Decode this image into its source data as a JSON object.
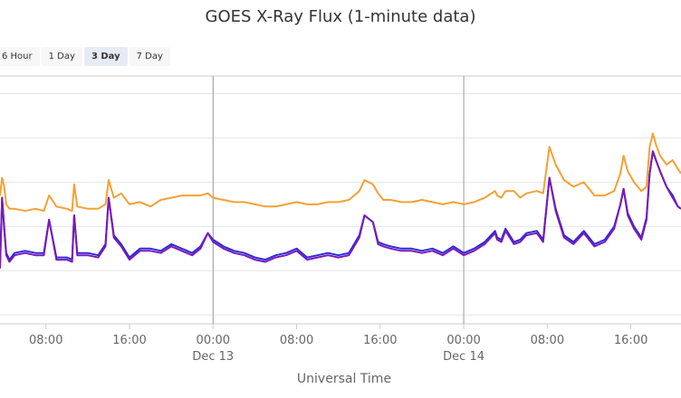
{
  "chart_data": {
    "type": "line",
    "title": "GOES X-Ray Flux (1-minute data)",
    "xlabel": "Universal Time",
    "ylabel": "",
    "range_selector": {
      "options": [
        "6 Hour",
        "1 Day",
        "3 Day",
        "7 Day"
      ],
      "selected": "3 Day"
    },
    "x_ticks": [
      {
        "hours": 8,
        "time": "08:00",
        "date": ""
      },
      {
        "hours": 16,
        "time": "16:00",
        "date": ""
      },
      {
        "hours": 24,
        "time": "00:00",
        "date": "Dec 13"
      },
      {
        "hours": 32,
        "time": "08:00",
        "date": ""
      },
      {
        "hours": 40,
        "time": "16:00",
        "date": ""
      },
      {
        "hours": 48,
        "time": "00:00",
        "date": "Dec 14"
      },
      {
        "hours": 56,
        "time": "08:00",
        "date": ""
      },
      {
        "hours": 64,
        "time": "16:00",
        "date": ""
      }
    ],
    "xlim_hours": [
      3.6,
      68.8
    ],
    "ylim_log10": [
      -9.2,
      -3.6
    ],
    "grid": true,
    "series": [
      {
        "color": "#f7a035",
        "x_hours": [
          3.6,
          3.8,
          4.0,
          4.2,
          4.5,
          5,
          6,
          7,
          7.8,
          8.3,
          9,
          10,
          10.5,
          10.7,
          11,
          12,
          13,
          13.7,
          14.0,
          14.5,
          15.2,
          16,
          17,
          18,
          19,
          20,
          21,
          22,
          22.8,
          23.5,
          24,
          25,
          26,
          27,
          28,
          29,
          30,
          31,
          32,
          33,
          34,
          35,
          36,
          37,
          38,
          38.5,
          39.3,
          39.8,
          40.3,
          41,
          42,
          43,
          44,
          45,
          46,
          47,
          48,
          49,
          50,
          51,
          51.2,
          51.6,
          52,
          52.8,
          53.4,
          54,
          55,
          55.6,
          56.2,
          56.8,
          57.6,
          58.5,
          59.5,
          60.5,
          61.5,
          62.4,
          63.0,
          63.3,
          63.7,
          64.3,
          65,
          65.5,
          65.8,
          66.1,
          66.4,
          66.8,
          67.4,
          68.0,
          68.5,
          68.8
        ],
        "y": [
          -6.3,
          -5.9,
          -6.1,
          -6.5,
          -6.6,
          -6.6,
          -6.65,
          -6.6,
          -6.65,
          -6.3,
          -6.55,
          -6.6,
          -6.65,
          -6.05,
          -6.55,
          -6.6,
          -6.6,
          -6.5,
          -5.95,
          -6.35,
          -6.25,
          -6.5,
          -6.45,
          -6.55,
          -6.4,
          -6.35,
          -6.3,
          -6.3,
          -6.3,
          -6.25,
          -6.35,
          -6.4,
          -6.45,
          -6.45,
          -6.5,
          -6.55,
          -6.55,
          -6.5,
          -6.45,
          -6.5,
          -6.5,
          -6.45,
          -6.45,
          -6.4,
          -6.2,
          -5.95,
          -6.05,
          -6.25,
          -6.4,
          -6.4,
          -6.45,
          -6.45,
          -6.4,
          -6.45,
          -6.5,
          -6.45,
          -6.5,
          -6.45,
          -6.35,
          -6.2,
          -6.3,
          -6.35,
          -6.2,
          -6.2,
          -6.35,
          -6.25,
          -6.2,
          -6.25,
          -5.2,
          -5.6,
          -5.95,
          -6.1,
          -6.0,
          -6.3,
          -6.3,
          -6.2,
          -5.8,
          -5.4,
          -5.75,
          -6.0,
          -6.2,
          -6.1,
          -5.2,
          -4.9,
          -5.15,
          -5.4,
          -5.6,
          -5.5,
          -5.7,
          -5.8
        ]
      },
      {
        "color": "#2b2bd8",
        "x_hours": [
          3.6,
          3.8,
          4.0,
          4.2,
          4.5,
          5,
          6,
          7,
          7.8,
          8.3,
          9,
          10,
          10.5,
          10.7,
          11,
          12,
          13,
          13.7,
          14.0,
          14.5,
          15.2,
          16,
          17,
          18,
          19,
          20,
          21,
          22,
          22.8,
          23.5,
          24,
          25,
          26,
          27,
          28,
          29,
          30,
          31,
          32,
          33,
          34,
          35,
          36,
          37,
          38,
          38.5,
          39.3,
          39.8,
          40.3,
          41,
          42,
          43,
          44,
          45,
          46,
          47,
          48,
          49,
          50,
          51,
          51.2,
          51.6,
          52,
          52.8,
          53.4,
          54,
          55,
          55.6,
          56.2,
          56.8,
          57.6,
          58.5,
          59.5,
          60.5,
          61.5,
          62.4,
          63.0,
          63.3,
          63.7,
          64.3,
          65,
          65.5,
          65.8,
          66.1,
          66.4,
          66.8,
          67.4,
          68.0,
          68.5,
          68.8
        ],
        "y": [
          -7.9,
          -6.35,
          -7.0,
          -7.6,
          -7.75,
          -7.6,
          -7.55,
          -7.6,
          -7.6,
          -6.85,
          -7.7,
          -7.7,
          -7.75,
          -6.75,
          -7.6,
          -7.6,
          -7.65,
          -7.4,
          -6.35,
          -7.2,
          -7.4,
          -7.7,
          -7.5,
          -7.5,
          -7.55,
          -7.4,
          -7.5,
          -7.6,
          -7.45,
          -7.15,
          -7.3,
          -7.45,
          -7.55,
          -7.6,
          -7.7,
          -7.75,
          -7.65,
          -7.6,
          -7.5,
          -7.7,
          -7.65,
          -7.6,
          -7.65,
          -7.6,
          -7.2,
          -6.75,
          -6.9,
          -7.35,
          -7.4,
          -7.45,
          -7.5,
          -7.5,
          -7.55,
          -7.5,
          -7.6,
          -7.45,
          -7.6,
          -7.5,
          -7.35,
          -7.1,
          -7.25,
          -7.3,
          -7.05,
          -7.35,
          -7.3,
          -7.15,
          -7.1,
          -7.3,
          -5.9,
          -6.6,
          -7.2,
          -7.35,
          -7.1,
          -7.4,
          -7.3,
          -7.0,
          -6.5,
          -6.15,
          -6.7,
          -7.0,
          -7.25,
          -6.8,
          -5.8,
          -5.3,
          -5.5,
          -5.75,
          -6.1,
          -6.3,
          -6.55,
          -6.6
        ]
      },
      {
        "color": "#7a19b8",
        "x_hours": [
          3.6,
          3.8,
          4.0,
          4.2,
          4.5,
          5,
          6,
          7,
          7.8,
          8.3,
          9,
          10,
          10.5,
          10.7,
          11,
          12,
          13,
          13.7,
          14.0,
          14.5,
          15.2,
          16,
          17,
          18,
          19,
          20,
          21,
          22,
          22.8,
          23.5,
          24,
          25,
          26,
          27,
          28,
          29,
          30,
          31,
          32,
          33,
          34,
          35,
          36,
          37,
          38,
          38.5,
          39.3,
          39.8,
          40.3,
          41,
          42,
          43,
          44,
          45,
          46,
          47,
          48,
          49,
          50,
          51,
          51.2,
          51.6,
          52,
          52.8,
          53.4,
          54,
          55,
          55.6,
          56.2,
          56.8,
          57.6,
          58.5,
          59.5,
          60.5,
          61.5,
          62.4,
          63.0,
          63.3,
          63.7,
          64.3,
          65,
          65.5,
          65.8,
          66.1,
          66.4,
          66.8,
          67.4,
          68.0,
          68.5,
          68.8
        ],
        "y": [
          -7.95,
          -6.35,
          -7.05,
          -7.65,
          -7.8,
          -7.65,
          -7.6,
          -7.65,
          -7.65,
          -6.85,
          -7.75,
          -7.75,
          -7.8,
          -6.75,
          -7.65,
          -7.65,
          -7.7,
          -7.45,
          -6.35,
          -7.25,
          -7.45,
          -7.75,
          -7.55,
          -7.55,
          -7.6,
          -7.45,
          -7.55,
          -7.65,
          -7.5,
          -7.15,
          -7.35,
          -7.5,
          -7.6,
          -7.65,
          -7.75,
          -7.8,
          -7.7,
          -7.65,
          -7.55,
          -7.75,
          -7.7,
          -7.65,
          -7.7,
          -7.65,
          -7.25,
          -6.75,
          -6.9,
          -7.4,
          -7.45,
          -7.5,
          -7.55,
          -7.55,
          -7.6,
          -7.55,
          -7.65,
          -7.5,
          -7.65,
          -7.55,
          -7.4,
          -7.15,
          -7.3,
          -7.35,
          -7.1,
          -7.4,
          -7.35,
          -7.2,
          -7.15,
          -7.35,
          -5.9,
          -6.65,
          -7.25,
          -7.4,
          -7.15,
          -7.45,
          -7.35,
          -7.05,
          -6.5,
          -6.15,
          -6.75,
          -7.05,
          -7.3,
          -6.85,
          -5.8,
          -5.3,
          -5.5,
          -5.75,
          -6.1,
          -6.35,
          -6.55,
          -6.6
        ]
      }
    ]
  }
}
